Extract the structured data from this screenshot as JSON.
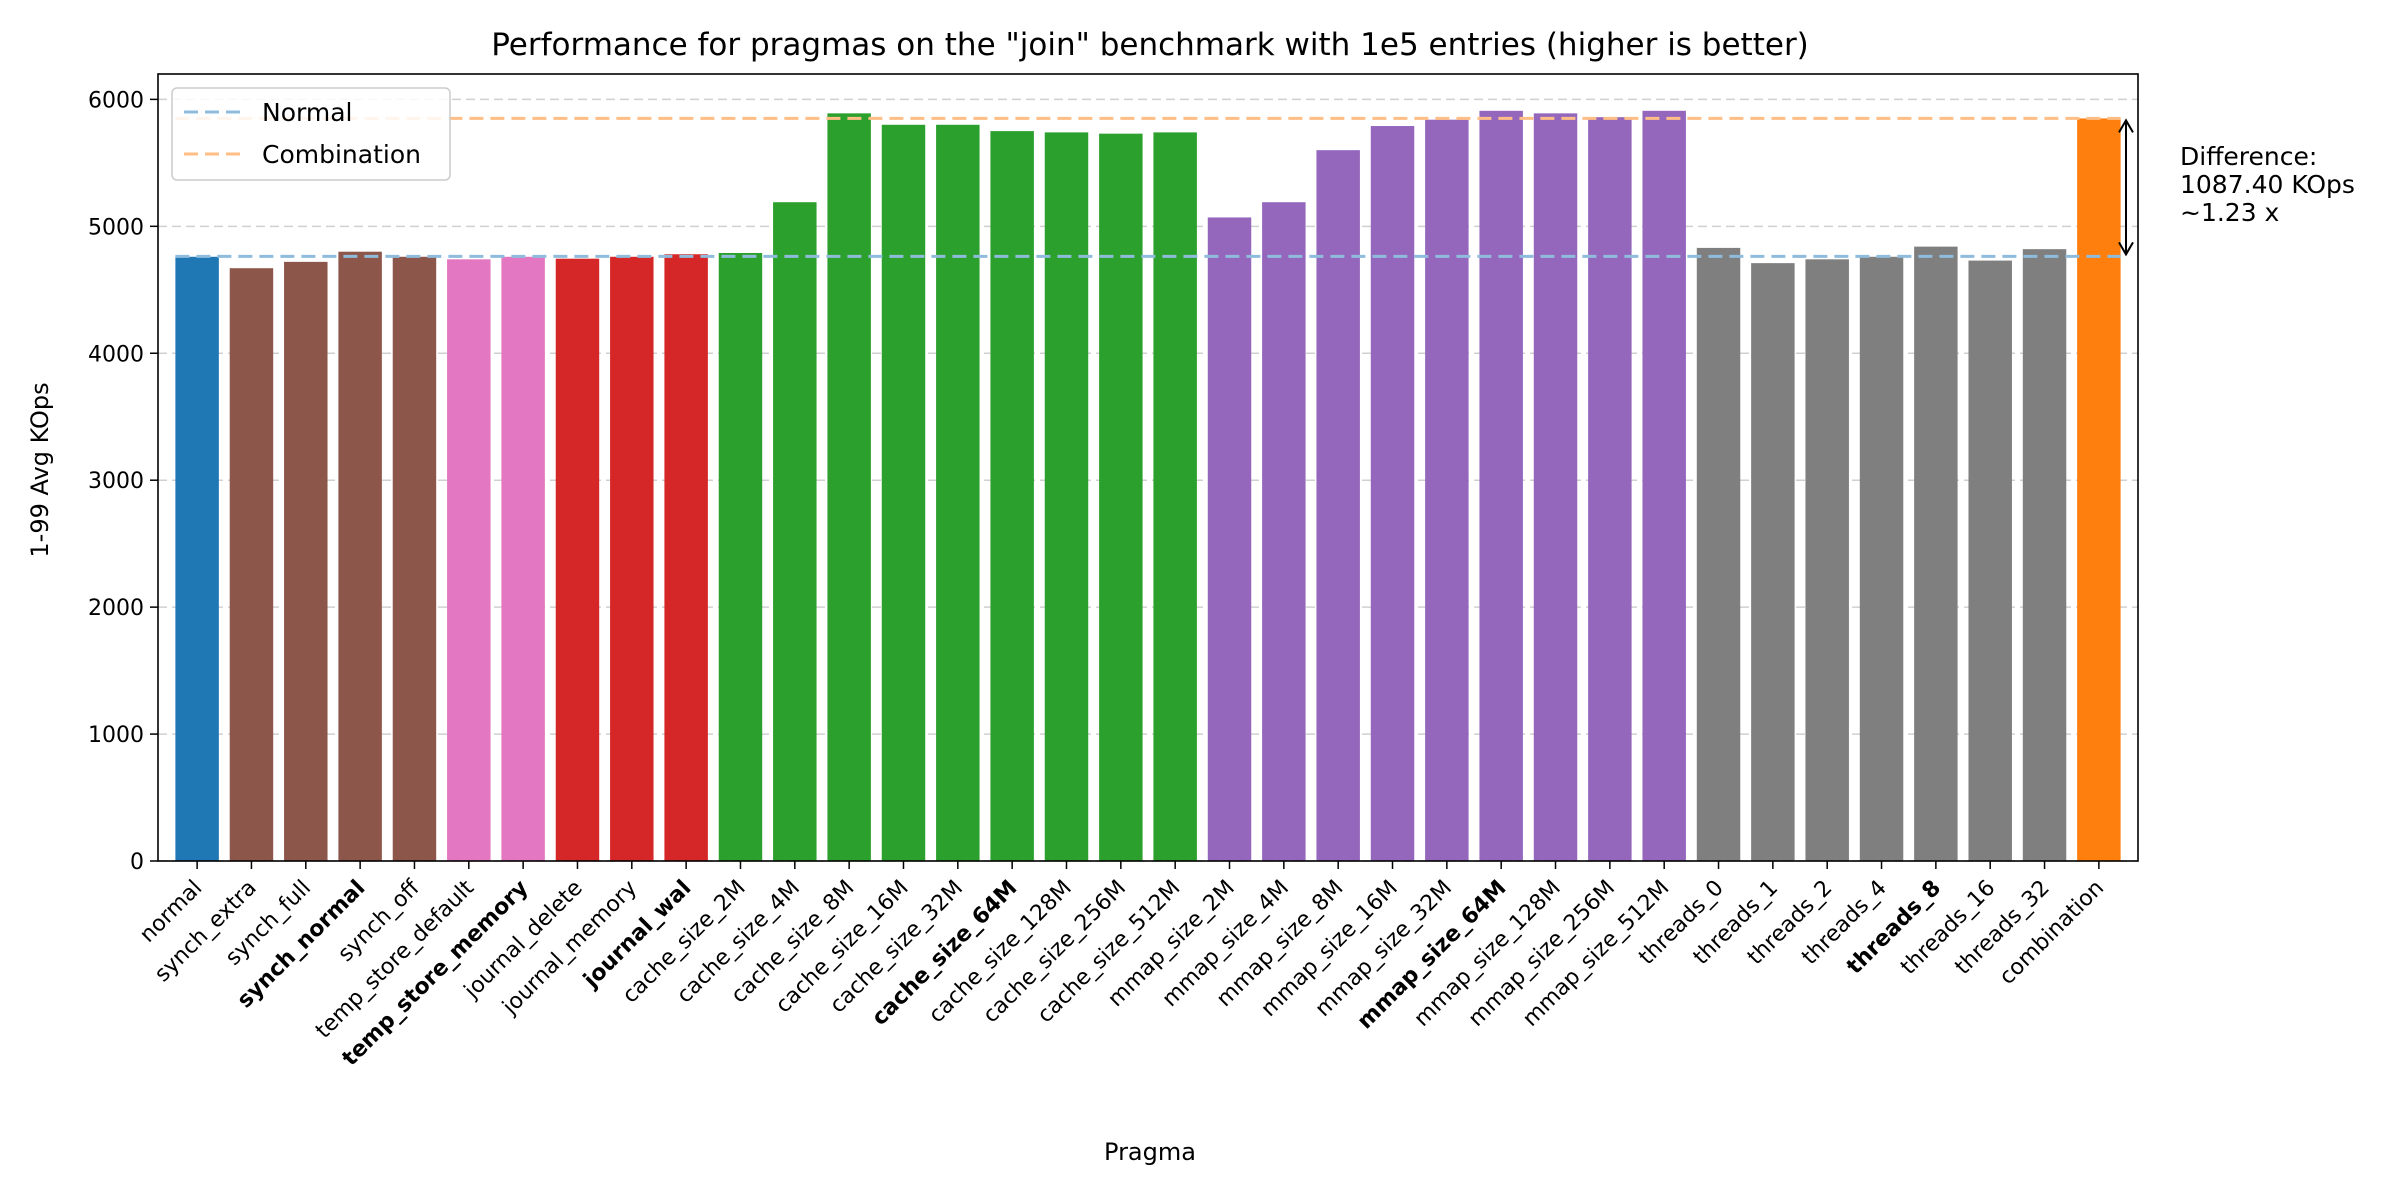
{
  "chart_data": {
    "type": "bar",
    "title": "Performance for pragmas on the \"join\" benchmark with 1e5 entries (higher is better)",
    "xlabel": "Pragma",
    "ylabel": "1-99 Avg KOps",
    "ylim": [
      0,
      6200
    ],
    "yticks": [
      0,
      1000,
      2000,
      3000,
      4000,
      5000,
      6000
    ],
    "grid": "horizontal-dashed",
    "legend_position": "top-left",
    "categories": [
      "normal",
      "synch_extra",
      "synch_full",
      "synch_normal",
      "synch_off",
      "temp_store_default",
      "temp_store_memory",
      "journal_delete",
      "journal_memory",
      "journal_wal",
      "cache_size_2M",
      "cache_size_4M",
      "cache_size_8M",
      "cache_size_16M",
      "cache_size_32M",
      "cache_size_64M",
      "cache_size_128M",
      "cache_size_256M",
      "cache_size_512M",
      "mmap_size_2M",
      "mmap_size_4M",
      "mmap_size_8M",
      "mmap_size_16M",
      "mmap_size_32M",
      "mmap_size_64M",
      "mmap_size_128M",
      "mmap_size_256M",
      "mmap_size_512M",
      "threads_0",
      "threads_1",
      "threads_2",
      "threads_4",
      "threads_8",
      "threads_16",
      "threads_32",
      "combination"
    ],
    "values": [
      4760,
      4670,
      4720,
      4800,
      4760,
      4740,
      4760,
      4745,
      4760,
      4780,
      4790,
      5190,
      5890,
      5800,
      5800,
      5750,
      5740,
      5730,
      5740,
      5070,
      5190,
      5600,
      5790,
      5840,
      5910,
      5890,
      5860,
      5910,
      4830,
      4710,
      4740,
      4760,
      4840,
      4730,
      4820,
      5850
    ],
    "bold_categories": [
      "synch_normal",
      "temp_store_memory",
      "journal_wal",
      "cache_size_64M",
      "mmap_size_64M",
      "threads_8"
    ],
    "bar_colors": [
      "#1f77b4",
      "#8c564b",
      "#8c564b",
      "#8c564b",
      "#8c564b",
      "#e377c2",
      "#e377c2",
      "#d62728",
      "#d62728",
      "#d62728",
      "#2ca02c",
      "#2ca02c",
      "#2ca02c",
      "#2ca02c",
      "#2ca02c",
      "#2ca02c",
      "#2ca02c",
      "#2ca02c",
      "#2ca02c",
      "#9467bd",
      "#9467bd",
      "#9467bd",
      "#9467bd",
      "#9467bd",
      "#9467bd",
      "#9467bd",
      "#9467bd",
      "#9467bd",
      "#7f7f7f",
      "#7f7f7f",
      "#7f7f7f",
      "#7f7f7f",
      "#7f7f7f",
      "#7f7f7f",
      "#7f7f7f",
      "#ff7f0e"
    ],
    "reference_lines": [
      {
        "name": "Normal",
        "value": 4762.8,
        "color": "#8fbcdc"
      },
      {
        "name": "Combination",
        "value": 5850.2,
        "color": "#ffbe86"
      }
    ],
    "annotation": {
      "lines": [
        "Difference:",
        "1087.40 KOps",
        "~1.23 x"
      ]
    }
  }
}
